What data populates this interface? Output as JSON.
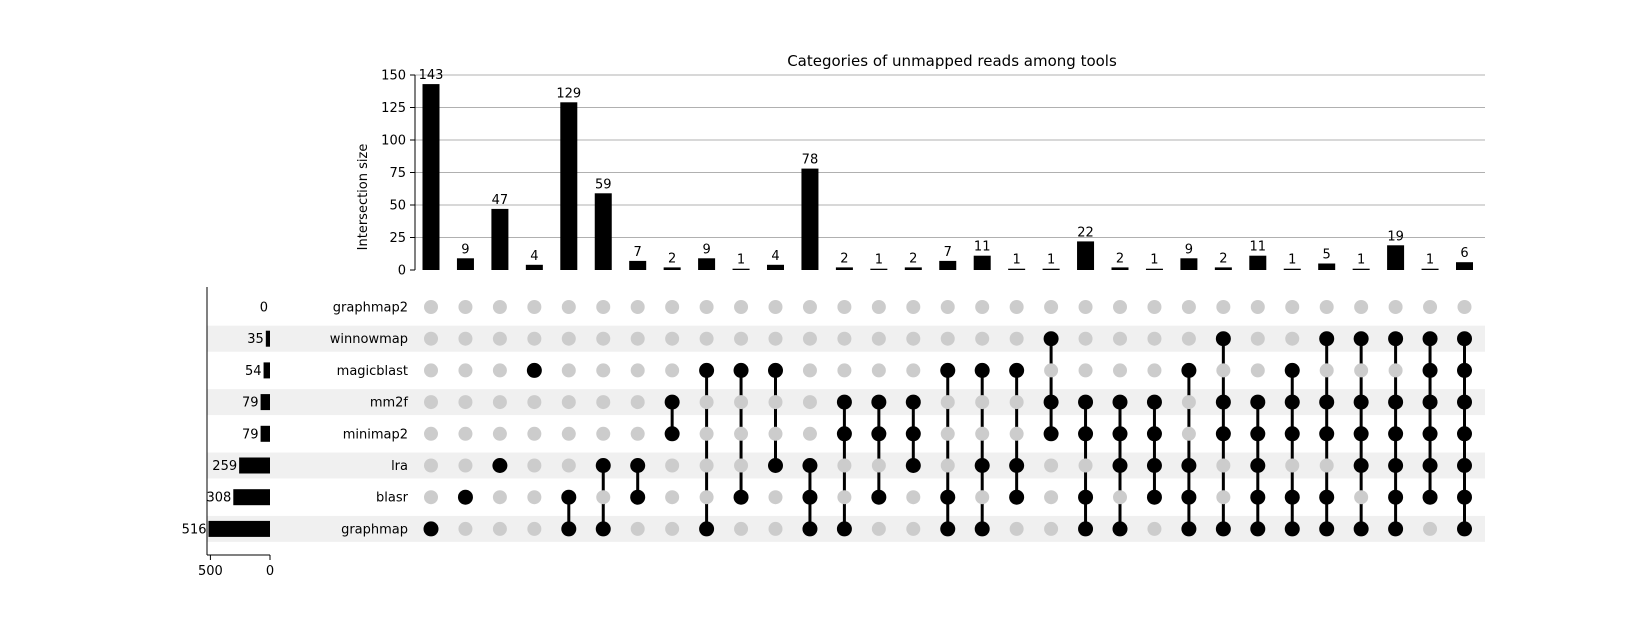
{
  "chart_data": {
    "type": "bar",
    "title": "Categories of unmapped reads among tools",
    "ylabel": "Intersection size",
    "ylim": [
      0,
      150
    ],
    "yticks": [
      0,
      25,
      50,
      75,
      100,
      125,
      150
    ],
    "grid": true,
    "sets": [
      {
        "name": "graphmap2",
        "size": 0
      },
      {
        "name": "winnowmap",
        "size": 35
      },
      {
        "name": "magicblast",
        "size": 54
      },
      {
        "name": "mm2f",
        "size": 79
      },
      {
        "name": "minimap2",
        "size": 79
      },
      {
        "name": "lra",
        "size": 259
      },
      {
        "name": "blasr",
        "size": 308
      },
      {
        "name": "graphmap",
        "size": 516
      }
    ],
    "set_size_ticks": [
      500,
      0
    ],
    "intersections": [
      {
        "size": 143,
        "members": [
          "graphmap"
        ]
      },
      {
        "size": 9,
        "members": [
          "blasr"
        ]
      },
      {
        "size": 47,
        "members": [
          "lra"
        ]
      },
      {
        "size": 4,
        "members": [
          "magicblast"
        ]
      },
      {
        "size": 129,
        "members": [
          "blasr",
          "graphmap"
        ]
      },
      {
        "size": 59,
        "members": [
          "lra",
          "graphmap"
        ]
      },
      {
        "size": 7,
        "members": [
          "lra",
          "blasr"
        ]
      },
      {
        "size": 2,
        "members": [
          "mm2f",
          "minimap2"
        ]
      },
      {
        "size": 9,
        "members": [
          "magicblast",
          "graphmap"
        ]
      },
      {
        "size": 1,
        "members": [
          "magicblast",
          "blasr"
        ]
      },
      {
        "size": 4,
        "members": [
          "magicblast",
          "lra"
        ]
      },
      {
        "size": 78,
        "members": [
          "lra",
          "blasr",
          "graphmap"
        ]
      },
      {
        "size": 2,
        "members": [
          "mm2f",
          "minimap2",
          "graphmap"
        ]
      },
      {
        "size": 1,
        "members": [
          "mm2f",
          "minimap2",
          "blasr"
        ]
      },
      {
        "size": 2,
        "members": [
          "mm2f",
          "minimap2",
          "lra"
        ]
      },
      {
        "size": 7,
        "members": [
          "magicblast",
          "blasr",
          "graphmap"
        ]
      },
      {
        "size": 11,
        "members": [
          "magicblast",
          "lra",
          "graphmap"
        ]
      },
      {
        "size": 1,
        "members": [
          "magicblast",
          "lra",
          "blasr"
        ]
      },
      {
        "size": 1,
        "members": [
          "winnowmap",
          "mm2f",
          "minimap2"
        ]
      },
      {
        "size": 22,
        "members": [
          "mm2f",
          "minimap2",
          "blasr",
          "graphmap"
        ]
      },
      {
        "size": 2,
        "members": [
          "mm2f",
          "minimap2",
          "lra",
          "graphmap"
        ]
      },
      {
        "size": 1,
        "members": [
          "mm2f",
          "minimap2",
          "lra",
          "blasr"
        ]
      },
      {
        "size": 9,
        "members": [
          "magicblast",
          "lra",
          "blasr",
          "graphmap"
        ]
      },
      {
        "size": 2,
        "members": [
          "winnowmap",
          "mm2f",
          "minimap2",
          "graphmap"
        ]
      },
      {
        "size": 11,
        "members": [
          "mm2f",
          "minimap2",
          "lra",
          "blasr",
          "graphmap"
        ]
      },
      {
        "size": 1,
        "members": [
          "magicblast",
          "mm2f",
          "minimap2",
          "blasr",
          "graphmap"
        ]
      },
      {
        "size": 5,
        "members": [
          "winnowmap",
          "mm2f",
          "minimap2",
          "blasr",
          "graphmap"
        ]
      },
      {
        "size": 1,
        "members": [
          "winnowmap",
          "mm2f",
          "minimap2",
          "lra",
          "graphmap"
        ]
      },
      {
        "size": 19,
        "members": [
          "winnowmap",
          "mm2f",
          "minimap2",
          "lra",
          "blasr",
          "graphmap"
        ]
      },
      {
        "size": 1,
        "members": [
          "winnowmap",
          "magicblast",
          "mm2f",
          "minimap2",
          "lra",
          "blasr"
        ]
      },
      {
        "size": 6,
        "members": [
          "winnowmap",
          "magicblast",
          "mm2f",
          "minimap2",
          "lra",
          "blasr",
          "graphmap"
        ]
      }
    ]
  },
  "colors": {
    "bar": "#000000",
    "dot_active": "#000000",
    "dot_inactive": "#cccccc",
    "row_shade": "#f0f0f0",
    "grid": "#b0b0b0"
  }
}
